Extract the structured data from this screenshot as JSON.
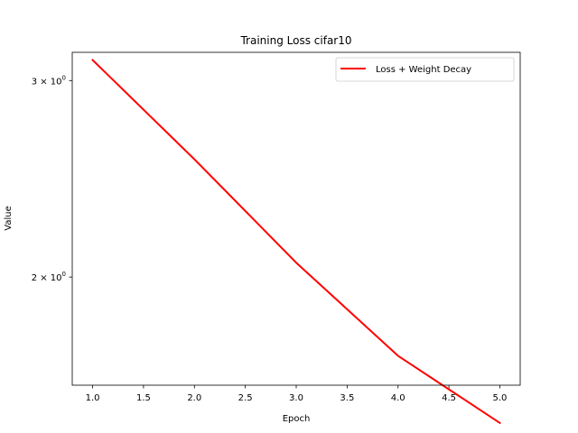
{
  "chart_data": {
    "type": "line",
    "title": "Training Loss cifar10",
    "xlabel": "Epoch",
    "ylabel": "Value",
    "xlim": [
      0.8,
      5.2
    ],
    "ylim": [
      1.6,
      3.18
    ],
    "yscale": "log",
    "grid": false,
    "legend_position": "top-right",
    "x": [
      1,
      2,
      3,
      4,
      5
    ],
    "series": [
      {
        "name": "Loss + Weight Decay",
        "color": "#ff0000",
        "values": [
          3.13,
          2.55,
          2.06,
          1.7,
          1.48
        ]
      }
    ],
    "x_ticks": [
      {
        "value": 1.0,
        "label": "1.0"
      },
      {
        "value": 1.5,
        "label": "1.5"
      },
      {
        "value": 2.0,
        "label": "2.0"
      },
      {
        "value": 2.5,
        "label": "2.5"
      },
      {
        "value": 3.0,
        "label": "3.0"
      },
      {
        "value": 3.5,
        "label": "3.5"
      },
      {
        "value": 4.0,
        "label": "4.0"
      },
      {
        "value": 4.5,
        "label": "4.5"
      },
      {
        "value": 5.0,
        "label": "5.0"
      }
    ],
    "y_ticks": [
      {
        "value": 3,
        "base": "3 × 10",
        "exp": "0"
      },
      {
        "value": 2,
        "base": "2 × 10",
        "exp": "0"
      }
    ]
  }
}
